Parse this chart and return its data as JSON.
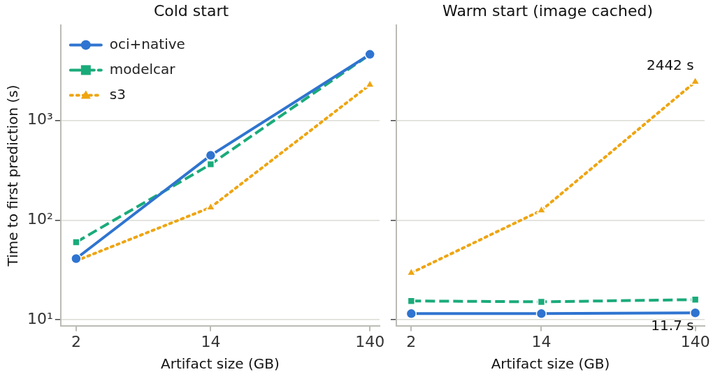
{
  "chart_data": [
    {
      "type": "line",
      "title": "Cold start",
      "xlabel": "Artifact size (GB)",
      "ylabel": "Time to first prediction (s)",
      "log": "xy",
      "x": [
        2,
        14,
        140
      ],
      "xlim": [
        1.6,
        161
      ],
      "xticks": [
        2,
        14,
        140
      ],
      "ylim": [
        8.7,
        9000
      ],
      "yticks": [
        {
          "value": 10,
          "label": "10¹"
        },
        {
          "value": 100,
          "label": "10²"
        },
        {
          "value": 1000,
          "label": "10³"
        }
      ],
      "grid": "y",
      "legend": "top left",
      "series": [
        {
          "name": "oci+native",
          "color": "#2f74d0",
          "values": [
            41,
            446,
            4610
          ],
          "marker": "circle",
          "line_style": "solid"
        },
        {
          "name": "modelcar",
          "color": "#1aab7a",
          "values": [
            60,
            363,
            4600
          ],
          "marker": "square",
          "line_style": "dashed"
        },
        {
          "name": "s3",
          "color": "#eea511",
          "values": [
            39,
            134,
            2280
          ],
          "marker": "triangle",
          "line_style": "dotted"
        }
      ]
    },
    {
      "type": "line",
      "title": "Warm start (image cached)",
      "xlabel": "Artifact size (GB)",
      "log": "xy",
      "x": [
        2,
        14,
        140
      ],
      "xlim": [
        1.6,
        161
      ],
      "xticks": [
        2,
        14,
        140
      ],
      "ylim": [
        8.7,
        9000
      ],
      "yticks": [
        {
          "value": 10,
          "label": null
        },
        {
          "value": 100,
          "label": null
        },
        {
          "value": 1000,
          "label": null
        }
      ],
      "grid": "y",
      "tick_labels": "x",
      "annotations": [
        {
          "text": "2442 s",
          "x": 140,
          "y": 2442
        },
        {
          "text": "11.7 s",
          "x": 140,
          "y": 11.7
        }
      ],
      "series": [
        {
          "color": "#2f74d0",
          "values": [
            11.5,
            11.5,
            11.7
          ],
          "marker": "circle",
          "line_style": "solid"
        },
        {
          "color": "#1aab7a",
          "values": [
            15.4,
            15.1,
            15.9
          ],
          "marker": "square",
          "line_style": "dashed"
        },
        {
          "color": "#eea511",
          "values": [
            29.5,
            125,
            2442
          ],
          "marker": "triangle",
          "line_style": "dotted"
        }
      ]
    }
  ]
}
